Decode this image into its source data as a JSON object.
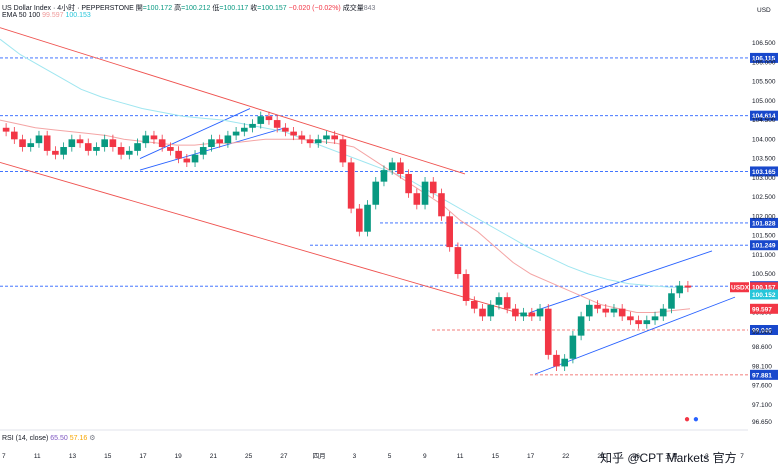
{
  "legend": {
    "symbol": "US Dollar Index · 4小时 · PEPPERSTONE",
    "open_label": "開",
    "open": "=100.172",
    "high_label": "高",
    "high": "=100.212",
    "low_label": "低",
    "low": "=100.117",
    "close_label": "收",
    "close": "=100.157",
    "change": "−0.020 (−0.02%)",
    "volume_label": "成交量",
    "volume": "843",
    "ema_label": "EMA 50 100",
    "ema50": "99.597",
    "ema100": "100.153",
    "rsi_label": "RSI (14, close)",
    "rsi1": "65.50",
    "rsi2": "57.16"
  },
  "axis": {
    "currency": "USD"
  },
  "colors": {
    "up": "#089981",
    "down": "#f23645",
    "ema50": "#f4a5a5",
    "ema100": "#9fe6f0",
    "hline": "#2962ff",
    "channel": "#2962ff",
    "downtrend": "#ef5350",
    "tag": "#1848cc"
  },
  "watermark": "知乎 @CPT Markets 官方",
  "chart_data": {
    "type": "candlestick",
    "title": "US Dollar Index · 4小时 · PEPPERSTONE",
    "y_ticks": [
      "106.500",
      "106.000",
      "105.500",
      "105.000",
      "104.500",
      "104.000",
      "103.500",
      "103.000",
      "102.500",
      "102.000",
      "101.500",
      "101.000",
      "100.500",
      "100.000",
      "99.500",
      "99.000",
      "98.600",
      "98.100",
      "97.600",
      "97.100",
      "96.650"
    ],
    "y_tick_values": [
      106.5,
      106.0,
      105.5,
      105.0,
      104.5,
      104.0,
      103.5,
      103.0,
      102.5,
      102.0,
      101.5,
      101.0,
      100.5,
      100.0,
      99.5,
      99.0,
      98.6,
      98.1,
      97.6,
      97.1,
      96.65
    ],
    "ylim": [
      96.5,
      107.1
    ],
    "x_ticks": [
      "7",
      "11",
      "13",
      "15",
      "17",
      "19",
      "21",
      "25",
      "27",
      "四月",
      "3",
      "5",
      "9",
      "11",
      "15",
      "17",
      "22",
      "24",
      "26",
      "五月",
      "3",
      "7"
    ],
    "x_tick_pos": [
      0,
      1,
      2,
      3,
      4,
      5,
      6,
      7,
      8,
      9,
      10,
      11,
      12,
      13,
      14,
      15,
      16,
      17,
      18,
      19,
      20,
      21
    ],
    "horizontal_levels": [
      {
        "value": 106.115,
        "label": "106.115"
      },
      {
        "value": 104.614,
        "label": "104.614"
      },
      {
        "value": 103.165,
        "label": "103.165"
      },
      {
        "value": 101.828,
        "label": "101.828"
      },
      {
        "value": 101.249,
        "label": "101.249"
      },
      {
        "value": 100.184,
        "label": "100.184"
      },
      {
        "value": 99.046,
        "label": "99.046"
      },
      {
        "value": 97.881,
        "label": "97.881"
      }
    ],
    "price_tags": [
      {
        "value": 100.157,
        "label": "100.157",
        "prefix": "USDX",
        "color": "#f23645"
      },
      {
        "value": 100.152,
        "label": "100.152",
        "color": "#26c6da"
      },
      {
        "value": 99.597,
        "label": "99.597",
        "color": "#f23645"
      }
    ],
    "closes": [
      104.2,
      104.0,
      103.8,
      103.9,
      104.1,
      103.7,
      103.6,
      103.8,
      104.0,
      103.9,
      103.7,
      103.8,
      104.0,
      103.8,
      103.6,
      103.7,
      103.9,
      104.1,
      104.0,
      103.8,
      103.7,
      103.5,
      103.4,
      103.6,
      103.8,
      104.0,
      103.9,
      104.1,
      104.2,
      104.3,
      104.4,
      104.6,
      104.5,
      104.3,
      104.2,
      104.1,
      104.0,
      103.9,
      104.0,
      104.1,
      104.0,
      103.4,
      102.2,
      101.6,
      102.3,
      102.9,
      103.2,
      103.4,
      103.1,
      102.6,
      102.3,
      102.9,
      102.6,
      102.0,
      101.2,
      100.5,
      99.8,
      99.6,
      99.4,
      99.7,
      99.9,
      99.6,
      99.4,
      99.5,
      99.4,
      99.6,
      98.4,
      98.1,
      98.3,
      98.9,
      99.4,
      99.7,
      99.6,
      99.5,
      99.6,
      99.4,
      99.3,
      99.2,
      99.3,
      99.4,
      99.6,
      100.0,
      100.2,
      100.15
    ],
    "ema50": [
      104.5,
      104.4,
      104.3,
      104.25,
      104.2,
      104.15,
      104.1,
      104.0,
      103.95,
      103.9,
      103.85,
      103.85,
      103.9,
      103.9,
      103.95,
      104.0,
      104.0,
      104.0,
      103.95,
      103.9,
      103.8,
      103.5,
      103.2,
      102.9,
      102.6,
      102.3,
      101.9,
      101.6,
      101.2,
      100.8,
      100.5,
      100.3,
      100.1,
      99.9,
      99.7,
      99.6,
      99.5,
      99.5,
      99.55,
      99.6
    ],
    "ema100": [
      106.6,
      106.2,
      105.9,
      105.6,
      105.3,
      105.1,
      104.95,
      104.8,
      104.7,
      104.6,
      104.55,
      104.5,
      104.4,
      104.3,
      104.2,
      104.0,
      103.8,
      103.6,
      103.4,
      103.2,
      103.0,
      102.7,
      102.4,
      102.1,
      101.8,
      101.5,
      101.2,
      100.95,
      100.7,
      100.5,
      100.35,
      100.25,
      100.2,
      100.16,
      100.15
    ]
  }
}
